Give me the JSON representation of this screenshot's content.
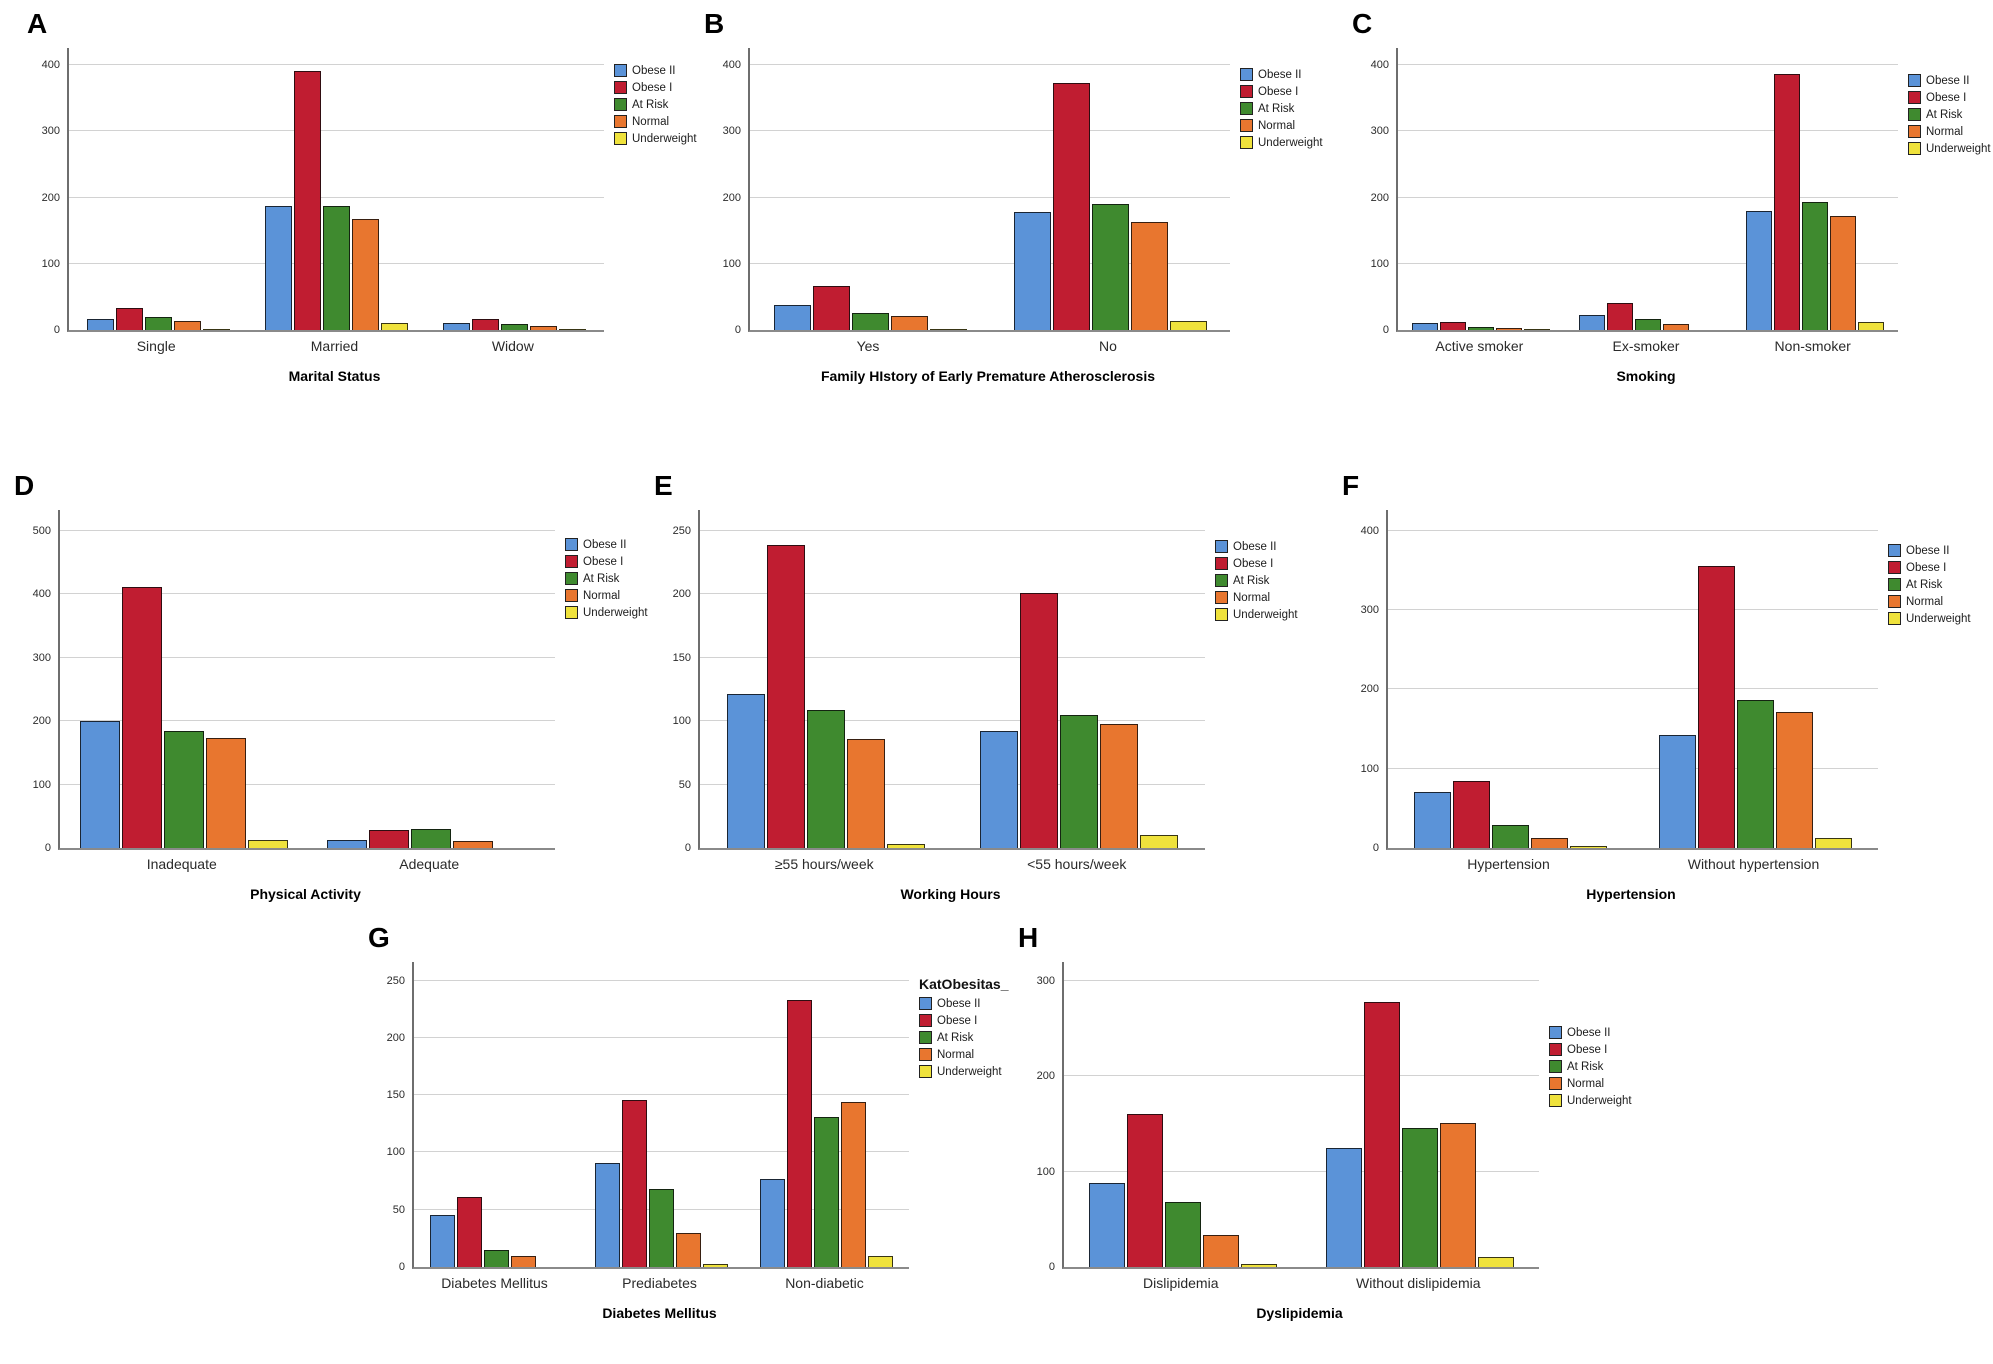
{
  "figure": {
    "background": "#ffffff",
    "series_colors": {
      "Obese II": "#5B93D8",
      "Obese I": "#C01D31",
      "At Risk": "#3F8A2F",
      "Normal": "#E8762F",
      "Underweight": "#EFE23C"
    },
    "grid_color": "#d2d2d2",
    "axis_color": "#6e6e6e"
  },
  "chart_data": [
    {
      "id": "A",
      "type": "bar",
      "title": "Marital Status",
      "xlabel": "Marital Status",
      "ylabel": "",
      "ylim": [
        0,
        400
      ],
      "yticks": [
        0,
        100,
        200,
        300,
        400
      ],
      "grid": true,
      "legend_position": "right",
      "categories": [
        "Single",
        "Married",
        "Widow"
      ],
      "series": [
        {
          "name": "Obese II",
          "values": [
            17,
            188,
            10
          ]
        },
        {
          "name": "Obese I",
          "values": [
            33,
            392,
            17
          ]
        },
        {
          "name": "At Risk",
          "values": [
            19,
            187,
            9
          ]
        },
        {
          "name": "Normal",
          "values": [
            13,
            167,
            6
          ]
        },
        {
          "name": "Underweight",
          "values": [
            2,
            10,
            1
          ]
        }
      ]
    },
    {
      "id": "B",
      "type": "bar",
      "title": "Family HIstory of Early Premature Atherosclerosis",
      "xlabel": "Family HIstory of Early Premature Atherosclerosis",
      "ylabel": "",
      "ylim": [
        0,
        400
      ],
      "yticks": [
        0,
        100,
        200,
        300,
        400
      ],
      "grid": true,
      "legend_position": "right",
      "categories": [
        "Yes",
        "No"
      ],
      "series": [
        {
          "name": "Obese II",
          "values": [
            38,
            178
          ]
        },
        {
          "name": "Obese I",
          "values": [
            66,
            373
          ]
        },
        {
          "name": "At Risk",
          "values": [
            25,
            191
          ]
        },
        {
          "name": "Normal",
          "values": [
            21,
            163
          ]
        },
        {
          "name": "Underweight",
          "values": [
            2,
            13
          ]
        }
      ]
    },
    {
      "id": "C",
      "type": "bar",
      "title": "Smoking",
      "xlabel": "Smoking",
      "ylabel": "",
      "ylim": [
        0,
        400
      ],
      "yticks": [
        0,
        100,
        200,
        300,
        400
      ],
      "grid": true,
      "legend_position": "right",
      "categories": [
        "Active smoker",
        "Ex-smoker",
        "Non-smoker"
      ],
      "series": [
        {
          "name": "Obese II",
          "values": [
            10,
            23,
            180
          ]
        },
        {
          "name": "Obese I",
          "values": [
            12,
            41,
            387
          ]
        },
        {
          "name": "At Risk",
          "values": [
            4,
            16,
            194
          ]
        },
        {
          "name": "Normal",
          "values": [
            3,
            9,
            172
          ]
        },
        {
          "name": "Underweight",
          "values": [
            1,
            0,
            12
          ]
        }
      ]
    },
    {
      "id": "D",
      "type": "bar",
      "title": "Physical Activity",
      "xlabel": "Physical Activity",
      "ylabel": "",
      "ylim": [
        0,
        500
      ],
      "yticks": [
        0,
        100,
        200,
        300,
        400,
        500
      ],
      "grid": true,
      "legend_position": "right",
      "categories": [
        "Inadequate",
        "Adequate"
      ],
      "series": [
        {
          "name": "Obese II",
          "values": [
            200,
            13
          ]
        },
        {
          "name": "Obese I",
          "values": [
            412,
            28
          ]
        },
        {
          "name": "At Risk",
          "values": [
            185,
            30
          ]
        },
        {
          "name": "Normal",
          "values": [
            173,
            11
          ]
        },
        {
          "name": "Underweight",
          "values": [
            13,
            0
          ]
        }
      ]
    },
    {
      "id": "E",
      "type": "bar",
      "title": "Working Hours",
      "xlabel": "Working Hours",
      "ylabel": "",
      "ylim": [
        0,
        250
      ],
      "yticks": [
        0,
        50,
        100,
        150,
        200,
        250
      ],
      "grid": true,
      "legend_position": "right",
      "categories": [
        "≥55 hours/week",
        "<55 hours/week"
      ],
      "series": [
        {
          "name": "Obese II",
          "values": [
            121,
            92
          ]
        },
        {
          "name": "Obese I",
          "values": [
            239,
            201
          ]
        },
        {
          "name": "At Risk",
          "values": [
            109,
            105
          ]
        },
        {
          "name": "Normal",
          "values": [
            86,
            98
          ]
        },
        {
          "name": "Underweight",
          "values": [
            3,
            10
          ]
        }
      ]
    },
    {
      "id": "F",
      "type": "bar",
      "title": "Hypertension",
      "xlabel": "Hypertension",
      "ylabel": "",
      "ylim": [
        0,
        400
      ],
      "yticks": [
        0,
        100,
        200,
        300,
        400
      ],
      "grid": true,
      "legend_position": "right",
      "categories": [
        "Hypertension",
        "Without hypertension"
      ],
      "series": [
        {
          "name": "Obese II",
          "values": [
            70,
            143
          ]
        },
        {
          "name": "Obese I",
          "values": [
            85,
            356
          ]
        },
        {
          "name": "At Risk",
          "values": [
            29,
            186
          ]
        },
        {
          "name": "Normal",
          "values": [
            12,
            172
          ]
        },
        {
          "name": "Underweight",
          "values": [
            2,
            12
          ]
        }
      ]
    },
    {
      "id": "G",
      "type": "bar",
      "title": "Diabetes Mellitus",
      "xlabel": "Diabetes Mellitus",
      "ylabel": "",
      "ylim": [
        0,
        250
      ],
      "yticks": [
        0,
        50,
        100,
        150,
        200,
        250
      ],
      "grid": true,
      "legend_position": "right",
      "legend_title": "KatObesitas_",
      "categories": [
        "Diabetes Mellitus",
        "Prediabetes",
        "Non-diabetic"
      ],
      "series": [
        {
          "name": "Obese II",
          "values": [
            45,
            91,
            77
          ]
        },
        {
          "name": "Obese I",
          "values": [
            61,
            146,
            233
          ]
        },
        {
          "name": "At Risk",
          "values": [
            15,
            68,
            131
          ]
        },
        {
          "name": "Normal",
          "values": [
            10,
            30,
            144
          ]
        },
        {
          "name": "Underweight",
          "values": [
            0,
            3,
            10
          ]
        }
      ]
    },
    {
      "id": "H",
      "type": "bar",
      "title": "Dyslipidemia",
      "xlabel": "Dyslipidemia",
      "ylabel": "",
      "ylim": [
        0,
        300
      ],
      "yticks": [
        0,
        100,
        200,
        300
      ],
      "grid": true,
      "legend_position": "right",
      "categories": [
        "Dislipidemia",
        "Without dislipidemia"
      ],
      "series": [
        {
          "name": "Obese II",
          "values": [
            88,
            125
          ]
        },
        {
          "name": "Obese I",
          "values": [
            160,
            278
          ]
        },
        {
          "name": "At Risk",
          "values": [
            68,
            146
          ]
        },
        {
          "name": "Normal",
          "values": [
            34,
            151
          ]
        },
        {
          "name": "Underweight",
          "values": [
            3,
            10
          ]
        }
      ]
    }
  ]
}
